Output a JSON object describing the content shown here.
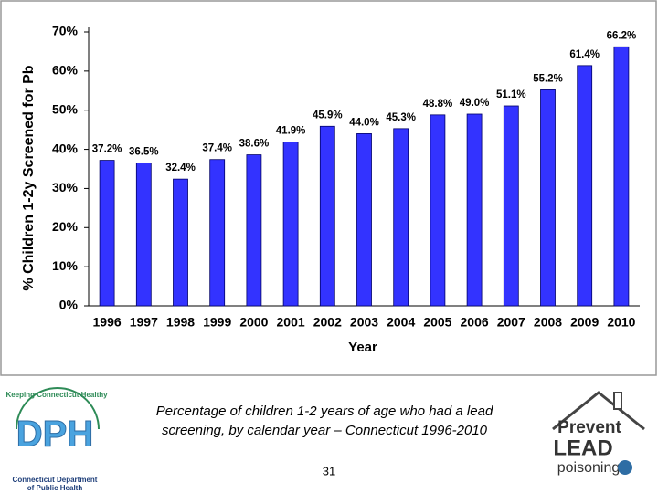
{
  "chart_data": {
    "type": "bar",
    "x_label": "Year",
    "y_label": "% Children 1-2y Screened for Pb",
    "categories": [
      "1996",
      "1997",
      "1998",
      "1999",
      "2000",
      "2001",
      "2002",
      "2003",
      "2004",
      "2005",
      "2006",
      "2007",
      "2008",
      "2009",
      "2010"
    ],
    "values": [
      37.2,
      36.5,
      32.4,
      37.4,
      38.6,
      41.9,
      45.9,
      44.0,
      45.3,
      48.8,
      49.0,
      51.1,
      55.2,
      61.4,
      66.2
    ],
    "value_labels": [
      "37.2%",
      "36.5%",
      "32.4%",
      "37.4%",
      "38.6%",
      "41.9%",
      "45.9%",
      "44.0%",
      "45.3%",
      "48.8%",
      "49.0%",
      "51.1%",
      "55.2%",
      "61.4%",
      "66.2%"
    ],
    "color": "#3333ff",
    "ylim": [
      0,
      70
    ],
    "yticks": [
      {
        "value": 0,
        "label": "0%"
      },
      {
        "value": 10,
        "label": "10%"
      },
      {
        "value": 20,
        "label": "20%"
      },
      {
        "value": 30,
        "label": "30%"
      },
      {
        "value": 40,
        "label": "40%"
      },
      {
        "value": 50,
        "label": "50%"
      },
      {
        "value": 60,
        "label": "60%"
      },
      {
        "value": 70,
        "label": "70%"
      }
    ],
    "grid": false
  },
  "caption": "Percentage of children 1-2 years of age who had a lead screening, by calendar year – Connecticut 1996-2010",
  "page_number": "31",
  "logos": {
    "dph": {
      "tagline": "Keeping Connecticut Healthy",
      "mark": "DPH",
      "org_line1": "Connecticut Department",
      "org_line2": "of Public Health"
    },
    "prevent": {
      "line1": "Prevent",
      "line2": "LEAD",
      "line3": "poisoning"
    }
  }
}
